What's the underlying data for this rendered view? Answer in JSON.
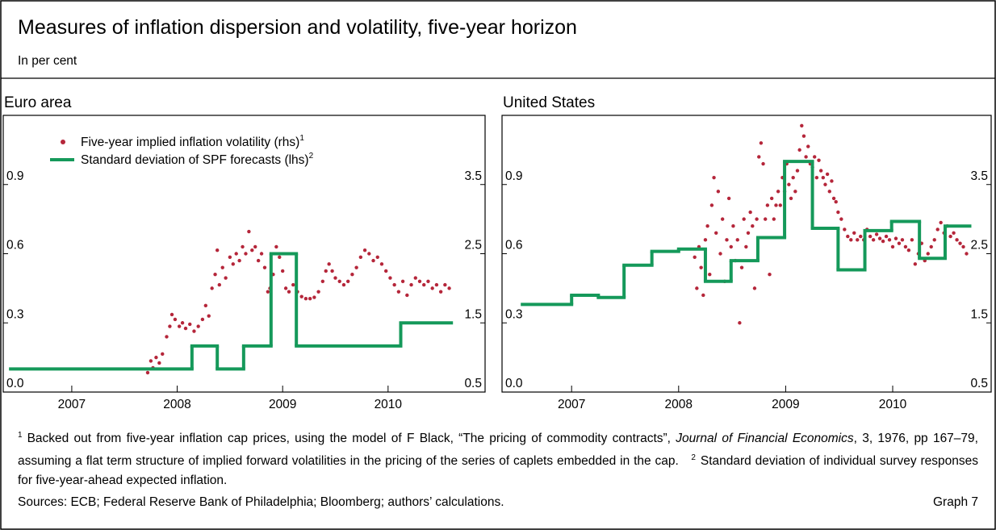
{
  "title": "Measures of inflation dispersion and volatility, five-year horizon",
  "subtitle": "In per cent",
  "chart_data": [
    {
      "type": "line",
      "title": "Euro area",
      "xlim": [
        2006.85,
        2011.42
      ],
      "xticks": [
        {
          "value": 2007.5,
          "label": "2007"
        },
        {
          "value": 2008.5,
          "label": "2008"
        },
        {
          "value": 2009.5,
          "label": "2009"
        },
        {
          "value": 2010.5,
          "label": "2010"
        }
      ],
      "ylim": [
        0,
        1.2
      ],
      "yticks": [
        {
          "value": 0,
          "label": "0.0"
        },
        0.3,
        0.6,
        0.9
      ],
      "y2lim": [
        0.5,
        4.5
      ],
      "y2ticks": [
        0.5,
        1.5,
        2.5,
        3.5
      ],
      "series": [
        {
          "name": "Five-year implied inflation volatility (rhs)",
          "footnote": "1",
          "type": "scatter",
          "axis": "y2",
          "color": "#b5263a",
          "x": [
            2008.22,
            2008.25,
            2008.27,
            2008.3,
            2008.33,
            2008.36,
            2008.4,
            2008.43,
            2008.45,
            2008.48,
            2008.52,
            2008.55,
            2008.58,
            2008.62,
            2008.66,
            2008.7,
            2008.74,
            2008.77,
            2008.8,
            2008.83,
            2008.86,
            2008.88,
            2008.9,
            2008.93,
            2008.96,
            2009.0,
            2009.03,
            2009.06,
            2009.09,
            2009.12,
            2009.15,
            2009.18,
            2009.21,
            2009.24,
            2009.27,
            2009.3,
            2009.33,
            2009.36,
            2009.38,
            2009.41,
            2009.44,
            2009.47,
            2009.5,
            2009.53,
            2009.56,
            2009.6,
            2009.64,
            2009.68,
            2009.72,
            2009.76,
            2009.8,
            2009.84,
            2009.88,
            2009.91,
            2009.94,
            2009.97,
            2010.0,
            2010.04,
            2010.08,
            2010.12,
            2010.16,
            2010.2,
            2010.24,
            2010.28,
            2010.32,
            2010.36,
            2010.4,
            2010.44,
            2010.48,
            2010.52,
            2010.56,
            2010.6,
            2010.64,
            2010.68,
            2010.72,
            2010.76,
            2010.8,
            2010.84,
            2010.88,
            2010.92,
            2010.96,
            2011.0,
            2011.04,
            2011.08
          ],
          "values": [
            0.78,
            0.95,
            0.85,
            1.0,
            0.92,
            1.05,
            1.3,
            1.45,
            1.62,
            1.55,
            1.45,
            1.5,
            1.42,
            1.48,
            1.38,
            1.45,
            1.55,
            1.75,
            1.6,
            2.0,
            2.2,
            2.55,
            2.05,
            2.3,
            2.15,
            2.45,
            2.35,
            2.5,
            2.4,
            2.6,
            2.5,
            2.82,
            2.55,
            2.6,
            2.4,
            2.5,
            2.3,
            1.95,
            2.0,
            2.2,
            2.6,
            2.45,
            2.25,
            2.0,
            1.95,
            2.05,
            1.95,
            1.88,
            1.85,
            1.85,
            1.87,
            1.95,
            2.1,
            2.25,
            2.35,
            2.25,
            2.15,
            2.1,
            2.05,
            2.1,
            2.2,
            2.3,
            2.45,
            2.55,
            2.5,
            2.4,
            2.45,
            2.35,
            2.25,
            2.15,
            2.05,
            1.95,
            2.1,
            1.9,
            2.05,
            2.15,
            2.1,
            2.05,
            2.1,
            2.0,
            2.05,
            1.95,
            2.05,
            2.0
          ]
        },
        {
          "name": "Standard deviation of SPF forecasts (lhs)",
          "footnote": "2",
          "type": "step",
          "color": "#15995a",
          "edges": [
            2006.92,
            2008.64,
            2008.88,
            2009.13,
            2009.39,
            2009.63,
            2010.62,
            2011.1
          ],
          "values": [
            0.1,
            0.2,
            0.1,
            0.2,
            0.6,
            0.2,
            0.3
          ]
        }
      ]
    },
    {
      "type": "line",
      "title": "United States",
      "xlim": [
        2006.85,
        2011.42
      ],
      "xticks": [
        {
          "value": 2007.5,
          "label": "2007"
        },
        {
          "value": 2008.5,
          "label": "2008"
        },
        {
          "value": 2009.5,
          "label": "2009"
        },
        {
          "value": 2010.5,
          "label": "2010"
        }
      ],
      "ylim": [
        0,
        1.2
      ],
      "yticks": [
        {
          "value": 0,
          "label": "0.0"
        },
        0.3,
        0.6,
        0.9
      ],
      "y2lim": [
        0.5,
        4.5
      ],
      "y2ticks": [
        0.5,
        1.5,
        2.5,
        3.5
      ],
      "series": [
        {
          "type": "scatter",
          "axis": "y2",
          "color": "#b5263a",
          "x": [
            2008.65,
            2008.67,
            2008.69,
            2008.71,
            2008.73,
            2008.75,
            2008.77,
            2008.79,
            2008.81,
            2008.83,
            2008.85,
            2008.87,
            2008.89,
            2008.91,
            2008.93,
            2008.95,
            2008.97,
            2008.99,
            2009.01,
            2009.03,
            2009.05,
            2009.07,
            2009.09,
            2009.11,
            2009.13,
            2009.15,
            2009.17,
            2009.19,
            2009.21,
            2009.23,
            2009.25,
            2009.27,
            2009.29,
            2009.31,
            2009.33,
            2009.35,
            2009.37,
            2009.39,
            2009.41,
            2009.43,
            2009.45,
            2009.47,
            2009.49,
            2009.51,
            2009.53,
            2009.55,
            2009.57,
            2009.59,
            2009.61,
            2009.63,
            2009.65,
            2009.67,
            2009.69,
            2009.71,
            2009.73,
            2009.75,
            2009.77,
            2009.79,
            2009.81,
            2009.83,
            2009.85,
            2009.87,
            2009.89,
            2009.91,
            2009.93,
            2009.95,
            2009.97,
            2009.99,
            2010.02,
            2010.05,
            2010.08,
            2010.11,
            2010.14,
            2010.17,
            2010.2,
            2010.23,
            2010.26,
            2010.29,
            2010.32,
            2010.35,
            2010.38,
            2010.41,
            2010.44,
            2010.47,
            2010.5,
            2010.53,
            2010.56,
            2010.59,
            2010.62,
            2010.65,
            2010.68,
            2010.71,
            2010.74,
            2010.77,
            2010.8,
            2010.83,
            2010.86,
            2010.89,
            2010.92,
            2010.95,
            2010.98,
            2011.01,
            2011.04,
            2011.07,
            2011.1,
            2011.13,
            2011.16,
            2011.19
          ],
          "values": [
            2.45,
            2.0,
            2.6,
            2.3,
            1.9,
            2.7,
            2.9,
            2.2,
            3.2,
            3.6,
            2.8,
            3.4,
            2.5,
            3.0,
            2.1,
            2.7,
            3.3,
            2.6,
            2.9,
            2.4,
            2.7,
            1.5,
            2.3,
            3.0,
            2.6,
            2.8,
            3.1,
            2.9,
            2.0,
            3.0,
            3.9,
            4.1,
            3.8,
            3.0,
            3.2,
            2.2,
            3.3,
            3.0,
            3.2,
            3.4,
            3.2,
            3.6,
            3.4,
            3.8,
            3.5,
            3.3,
            3.6,
            3.4,
            3.7,
            4.0,
            4.35,
            4.2,
            3.9,
            4.05,
            3.8,
            3.75,
            3.9,
            3.6,
            3.85,
            3.7,
            3.6,
            3.5,
            3.65,
            3.4,
            3.55,
            3.3,
            3.25,
            3.1,
            3.0,
            2.85,
            2.75,
            2.7,
            2.8,
            2.7,
            2.75,
            2.7,
            2.85,
            2.75,
            2.7,
            2.78,
            2.72,
            2.68,
            2.75,
            2.7,
            2.6,
            2.72,
            2.65,
            2.7,
            2.6,
            2.55,
            2.7,
            2.35,
            2.5,
            2.65,
            2.4,
            2.5,
            2.6,
            2.7,
            2.85,
            2.95,
            2.8,
            2.9,
            2.75,
            2.8,
            2.7,
            2.65,
            2.6,
            2.5
          ]
        },
        {
          "type": "step",
          "color": "#15995a",
          "edges": [
            2007.04,
            2007.5,
            2007.75,
            2007.99,
            2008.25,
            2008.5,
            2008.75,
            2008.99,
            2009.24,
            2009.49,
            2009.75,
            2009.99,
            2010.24,
            2010.49,
            2010.75,
            2010.99,
            2011.22
          ],
          "values": [
            0.38,
            0.42,
            0.41,
            0.55,
            0.61,
            0.62,
            0.48,
            0.57,
            0.67,
            1.0,
            0.71,
            0.53,
            0.7,
            0.74,
            0.58,
            0.72
          ]
        }
      ]
    }
  ],
  "footnotes": [
    {
      "marker": "1",
      "parts": [
        {
          "text": "Backed out from five-year inflation cap prices, using the model of F Black, “The pricing of commodity contracts”, "
        },
        {
          "text": "Journal of Financial Economics",
          "italic": true
        },
        {
          "text": ", 3, 1976, pp 167–79, assuming a flat term structure of implied forward volatilities in the pricing of the series of caplets embedded in the cap."
        }
      ]
    },
    {
      "marker": "2",
      "parts": [
        {
          "text": "Standard deviation of individual survey responses for five-year-ahead expected inflation."
        }
      ]
    }
  ],
  "sources": "Sources: ECB; Federal Reserve Bank of Philadelphia; Bloomberg; authors’ calculations.",
  "graph_label": "Graph 7"
}
